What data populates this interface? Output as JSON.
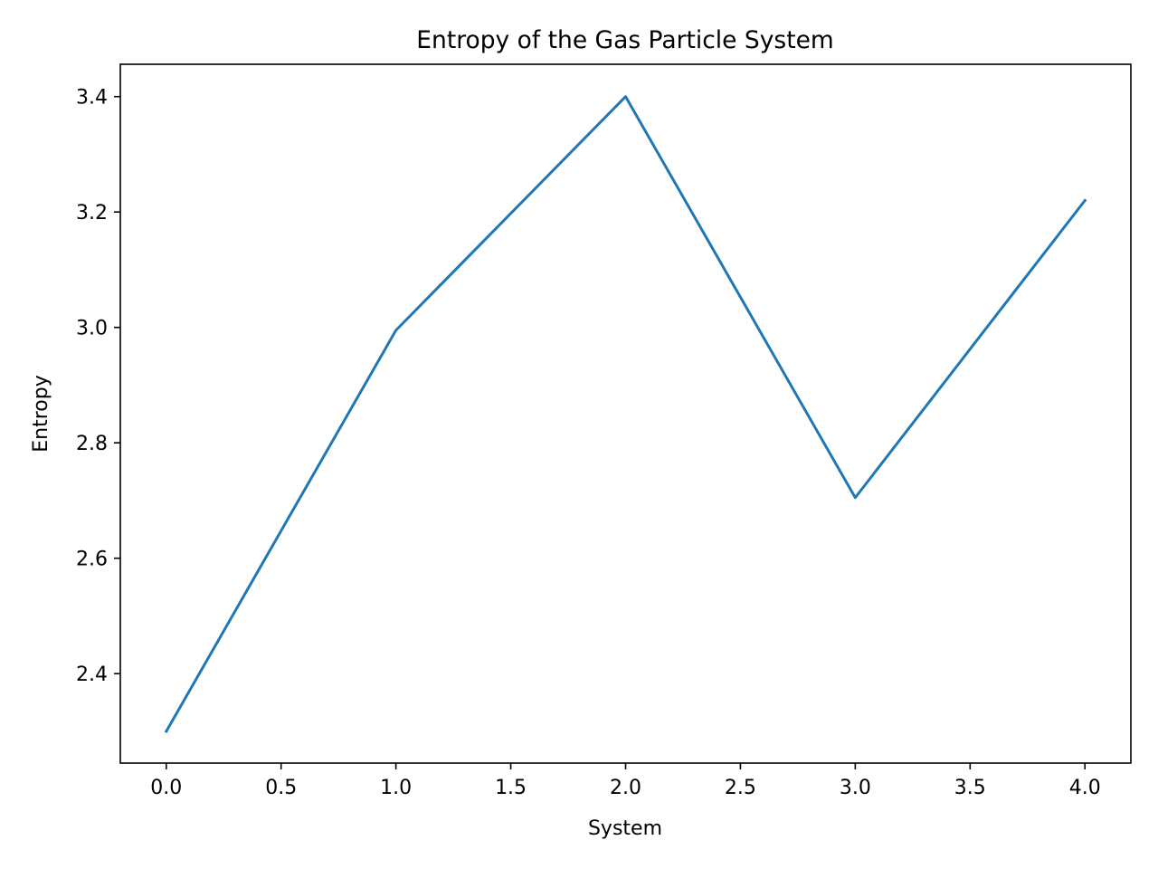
{
  "chart_data": {
    "type": "line",
    "title": "Entropy of the Gas Particle System",
    "xlabel": "System",
    "ylabel": "Entropy",
    "x": [
      0,
      1,
      2,
      3,
      4
    ],
    "series": [
      {
        "values": [
          2.3,
          2.995,
          3.4,
          2.705,
          3.22
        ],
        "color": "#1f77b4"
      }
    ],
    "xlim": [
      -0.2,
      4.2
    ],
    "ylim": [
      2.245,
      3.456
    ],
    "xticks": [
      0.0,
      0.5,
      1.0,
      1.5,
      2.0,
      2.5,
      3.0,
      3.5,
      4.0
    ],
    "xtick_labels": [
      "0.0",
      "0.5",
      "1.0",
      "1.5",
      "2.0",
      "2.5",
      "3.0",
      "3.5",
      "4.0"
    ],
    "yticks": [
      2.4,
      2.6,
      2.8,
      3.0,
      3.2,
      3.4
    ],
    "ytick_labels": [
      "2.4",
      "2.6",
      "2.8",
      "3.0",
      "3.2",
      "3.4"
    ],
    "grid": false,
    "legend": false
  }
}
